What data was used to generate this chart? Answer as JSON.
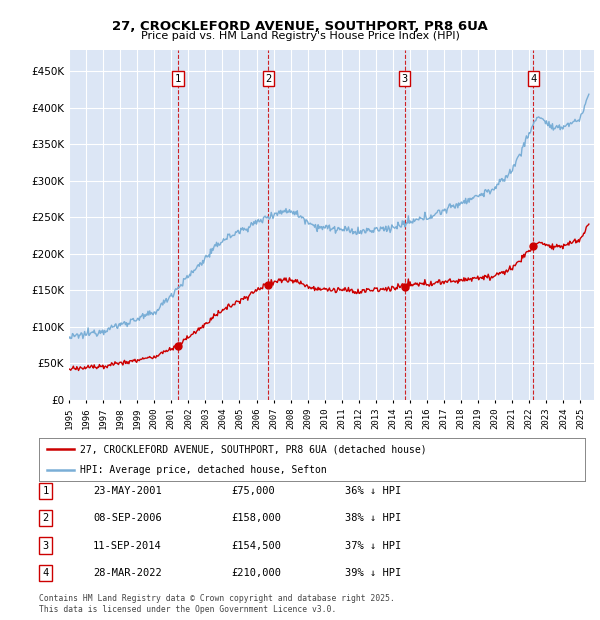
{
  "title": "27, CROCKLEFORD AVENUE, SOUTHPORT, PR8 6UA",
  "subtitle": "Price paid vs. HM Land Registry's House Price Index (HPI)",
  "legend_label_red": "27, CROCKLEFORD AVENUE, SOUTHPORT, PR8 6UA (detached house)",
  "legend_label_blue": "HPI: Average price, detached house, Sefton",
  "transactions": [
    {
      "num": 1,
      "date": "23-MAY-2001",
      "date_val": 2001.39,
      "price": 75000,
      "pct": "36%",
      "dir": "↓"
    },
    {
      "num": 2,
      "date": "08-SEP-2006",
      "date_val": 2006.69,
      "price": 158000,
      "pct": "38%",
      "dir": "↓"
    },
    {
      "num": 3,
      "date": "11-SEP-2014",
      "date_val": 2014.69,
      "price": 154500,
      "pct": "37%",
      "dir": "↓"
    },
    {
      "num": 4,
      "date": "28-MAR-2022",
      "date_val": 2022.24,
      "price": 210000,
      "pct": "39%",
      "dir": "↓"
    }
  ],
  "table_rows": [
    {
      "num": "1",
      "date": "23-MAY-2001",
      "price": "£75,000",
      "pct": "36% ↓ HPI"
    },
    {
      "num": "2",
      "date": "08-SEP-2006",
      "price": "£158,000",
      "pct": "38% ↓ HPI"
    },
    {
      "num": "3",
      "date": "11-SEP-2014",
      "price": "£154,500",
      "pct": "37% ↓ HPI"
    },
    {
      "num": "4",
      "date": "28-MAR-2022",
      "price": "£210,000",
      "pct": "39% ↓ HPI"
    }
  ],
  "footer_line1": "Contains HM Land Registry data © Crown copyright and database right 2025.",
  "footer_line2": "This data is licensed under the Open Government Licence v3.0.",
  "ylim": [
    0,
    480000
  ],
  "yticks": [
    0,
    50000,
    100000,
    150000,
    200000,
    250000,
    300000,
    350000,
    400000,
    450000
  ],
  "xlim_start": 1995.0,
  "xlim_end": 2025.8,
  "background_color": "#dce6f5",
  "grid_color": "#ffffff",
  "red_color": "#cc0000",
  "blue_color": "#7aaed6"
}
